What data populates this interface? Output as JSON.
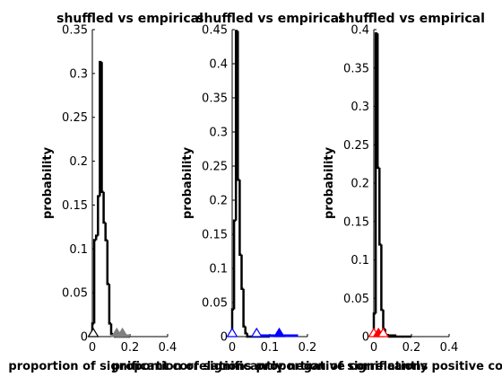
{
  "figure": {
    "background": "#ffffff",
    "axis_color": "#000000",
    "hist_color": "#000000"
  },
  "chart_data": [
    {
      "type": "histogram",
      "title": "shuffled vs empirical",
      "ylabel": "probability",
      "xlabel": "proportion of significant correlations",
      "xlim": [
        0,
        0.4
      ],
      "ylim": [
        0,
        0.35
      ],
      "xticks": [
        0,
        0.2,
        0.4
      ],
      "xtick_labels": [
        "0",
        "0.2",
        "0.4"
      ],
      "yticks": [
        0,
        0.05,
        0.1,
        0.15,
        0.2,
        0.25,
        0.3,
        0.35
      ],
      "ytick_labels": [
        "0",
        "0.05",
        "0.1",
        "0.15",
        "0.2",
        "0.25",
        "0.3",
        "0.35"
      ],
      "bin_edges": [
        0,
        0.01,
        0.02,
        0.03,
        0.04,
        0.05,
        0.06,
        0.07,
        0.08,
        0.09,
        0.1,
        0.11,
        0.12,
        0.13,
        0.14,
        0.15,
        0.16,
        0.17,
        0.18,
        0.19,
        0.2
      ],
      "values": [
        0.015,
        0.11,
        0.115,
        0.16,
        0.313,
        0.165,
        0.13,
        0.11,
        0.06,
        0.015,
        0.003,
        0.002,
        0,
        0,
        0,
        0,
        0,
        0,
        0,
        0
      ],
      "markers": [
        {
          "x": 0.005,
          "filled": false,
          "color": "#000000"
        },
        {
          "x": 0.13,
          "filled": true,
          "color": "#808080"
        },
        {
          "x": 0.16,
          "filled": true,
          "color": "#808080"
        }
      ],
      "marker_band": {
        "x0": 0.1,
        "x1": 0.2,
        "color": "#808080"
      }
    },
    {
      "type": "histogram",
      "title": "shuffled vs empirical",
      "ylabel": "probability",
      "xlabel": "proportion of significantly negative correlations",
      "xlim": [
        0,
        0.2
      ],
      "ylim": [
        0,
        0.45
      ],
      "xticks": [
        0,
        0.1,
        0.2
      ],
      "xtick_labels": [
        "0",
        "0.1",
        "0.2"
      ],
      "yticks": [
        0,
        0.05,
        0.1,
        0.15,
        0.2,
        0.25,
        0.3,
        0.35,
        0.4,
        0.45
      ],
      "ytick_labels": [
        "0",
        "0.05",
        "0.1",
        "0.15",
        "0.2",
        "0.25",
        "0.3",
        "0.35",
        "0.4",
        "0.45"
      ],
      "bin_edges": [
        0,
        0.005,
        0.01,
        0.015,
        0.02,
        0.025,
        0.03,
        0.035,
        0.04,
        0.045,
        0.05,
        0.055,
        0.06,
        0.065,
        0.07,
        0.075,
        0.08,
        0.085,
        0.09,
        0.095,
        0.1
      ],
      "values": [
        0.04,
        0.17,
        0.448,
        0.23,
        0.12,
        0.07,
        0.015,
        0.005,
        0,
        0,
        0,
        0,
        0,
        0,
        0,
        0,
        0,
        0,
        0,
        0
      ],
      "markers": [
        {
          "x": 0.0,
          "filled": false,
          "color": "#0000ff"
        },
        {
          "x": 0.065,
          "filled": false,
          "color": "#0000ff"
        },
        {
          "x": 0.125,
          "filled": true,
          "color": "#0000ff"
        }
      ],
      "marker_band": {
        "x0": 0.065,
        "x1": 0.175,
        "color": "#0000ff"
      }
    },
    {
      "type": "histogram",
      "title": "shuffled vs empirical",
      "ylabel": "probability",
      "xlabel": "proportion of significantly positive correlations",
      "xlim": [
        0,
        0.4
      ],
      "ylim": [
        0,
        0.4
      ],
      "xticks": [
        0,
        0.2,
        0.4
      ],
      "xtick_labels": [
        "0",
        "0.2",
        "0.4"
      ],
      "yticks": [
        0,
        0.05,
        0.1,
        0.15,
        0.2,
        0.25,
        0.3,
        0.35,
        0.4
      ],
      "ytick_labels": [
        "0",
        "0.05",
        "0.1",
        "0.15",
        "0.2",
        "0.25",
        "0.3",
        "0.35",
        "0.4"
      ],
      "bin_edges": [
        0,
        0.01,
        0.02,
        0.03,
        0.04,
        0.05,
        0.06,
        0.07,
        0.08,
        0.09,
        0.1,
        0.11,
        0.12,
        0.13,
        0.14,
        0.15,
        0.16,
        0.17,
        0.18,
        0.19,
        0.2
      ],
      "values": [
        0.03,
        0.395,
        0.22,
        0.12,
        0.035,
        0.01,
        0.003,
        0.002,
        0,
        0,
        0,
        0,
        0,
        0,
        0,
        0,
        0,
        0,
        0,
        0
      ],
      "markers": [
        {
          "x": 0.0,
          "filled": false,
          "color": "#ff0000"
        },
        {
          "x": 0.025,
          "filled": true,
          "color": "#ff0000"
        },
        {
          "x": 0.05,
          "filled": false,
          "color": "#ff0000"
        }
      ],
      "marker_band": {
        "x0": 0.0,
        "x1": 0.12,
        "color": "#000000"
      }
    }
  ]
}
